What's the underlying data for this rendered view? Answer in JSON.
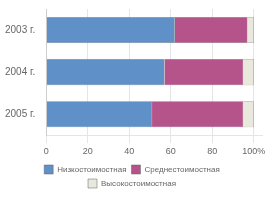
{
  "chart_data": {
    "type": "bar",
    "orientation": "horizontal",
    "stacked": true,
    "categories": [
      "2003 г.",
      "2004 г.",
      "2005 г."
    ],
    "series": [
      {
        "name": "Низкостоимостная",
        "color": "#6090c8",
        "values": [
          62,
          57,
          51
        ]
      },
      {
        "name": "Среднестоимостная",
        "color": "#b5538b",
        "values": [
          35,
          38,
          44
        ]
      },
      {
        "name": "Высокостоимостная",
        "color": "#e8e8dc",
        "values": [
          3,
          5,
          5
        ]
      }
    ],
    "xlim": [
      0,
      104
    ],
    "xticks": [
      0,
      20,
      40,
      60,
      80,
      {
        "value": 100,
        "label": "100%"
      }
    ],
    "grid": true,
    "legend": "bottom"
  }
}
